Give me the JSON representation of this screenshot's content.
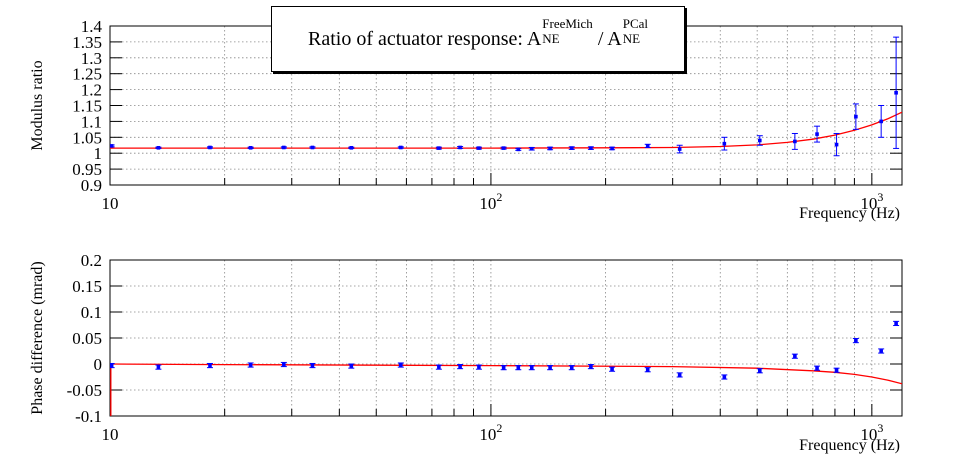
{
  "chart_data": [
    {
      "type": "scatter",
      "title": "Ratio of actuator response: A_NE^FreeMich / A_NE^PCal",
      "xlabel": "Frequency (Hz)",
      "ylabel": "Modulus ratio",
      "xscale": "log",
      "xlim": [
        10,
        1200
      ],
      "ylim": [
        0.9,
        1.4
      ],
      "xticks": [
        10,
        100,
        1000
      ],
      "xtick_labels": [
        "10",
        "10^2",
        "10^3"
      ],
      "yticks": [
        0.9,
        0.95,
        1.0,
        1.05,
        1.1,
        1.15,
        1.2,
        1.25,
        1.3,
        1.35,
        1.4
      ],
      "ytick_labels": [
        "0.9",
        "0.95",
        "1",
        "1.05",
        "1.1",
        "1.15",
        "1.2",
        "1.25",
        "1.3",
        "1.35",
        "1.4"
      ],
      "grid": true,
      "series": [
        {
          "x": [
            10.1,
            13.4,
            18.3,
            23.4,
            28.6,
            34.0,
            43.0,
            58.0,
            73.0,
            83.0,
            93.0,
            108.0,
            118.0,
            128.0,
            143.0,
            163.0,
            183.0,
            208.0,
            258.0,
            313.0,
            410.0,
            508.0,
            628.0,
            718.0,
            808.0,
            908.0,
            1058.0,
            1158.0
          ],
          "y": [
            1.023,
            1.017,
            1.018,
            1.017,
            1.018,
            1.018,
            1.017,
            1.018,
            1.016,
            1.018,
            1.016,
            1.016,
            1.012,
            1.014,
            1.015,
            1.016,
            1.016,
            1.015,
            1.023,
            1.013,
            1.03,
            1.04,
            1.037,
            1.06,
            1.027,
            1.115,
            1.1,
            1.19
          ],
          "yerr": [
            0.003,
            0.002,
            0.002,
            0.002,
            0.002,
            0.002,
            0.002,
            0.002,
            0.003,
            0.003,
            0.003,
            0.003,
            0.003,
            0.004,
            0.004,
            0.004,
            0.004,
            0.004,
            0.005,
            0.012,
            0.02,
            0.015,
            0.025,
            0.025,
            0.035,
            0.04,
            0.05,
            0.175
          ]
        },
        {
          "type": "line",
          "x": [
            10,
            100,
            200,
            300,
            400,
            500,
            600,
            700,
            800,
            900,
            1000,
            1100,
            1200
          ],
          "y": [
            1.016,
            1.016,
            1.017,
            1.018,
            1.021,
            1.026,
            1.034,
            1.044,
            1.057,
            1.072,
            1.089,
            1.108,
            1.129
          ]
        }
      ]
    },
    {
      "type": "scatter",
      "xlabel": "Frequency (Hz)",
      "ylabel": "Phase difference (mrad)",
      "xscale": "log",
      "xlim": [
        10,
        1200
      ],
      "ylim": [
        -0.1,
        0.2
      ],
      "xticks": [
        10,
        100,
        1000
      ],
      "xtick_labels": [
        "10",
        "10^2",
        "10^3"
      ],
      "yticks": [
        -0.1,
        -0.05,
        0,
        0.05,
        0.1,
        0.15,
        0.2
      ],
      "ytick_labels": [
        "-0.1",
        "-0.05",
        "0",
        "0.05",
        "0.1",
        "0.15",
        "0.2"
      ],
      "grid": true,
      "series": [
        {
          "x": [
            10.1,
            13.4,
            18.3,
            23.4,
            28.6,
            34.0,
            43.0,
            58.0,
            73.0,
            83.0,
            93.0,
            108.0,
            118.0,
            128.0,
            143.0,
            163.0,
            183.0,
            208.0,
            258.0,
            313.0,
            410.0,
            508.0,
            628.0,
            718.0,
            808.0,
            908.0,
            1058.0,
            1158.0
          ],
          "y": [
            -0.003,
            -0.006,
            -0.003,
            -0.002,
            -0.001,
            -0.003,
            -0.004,
            -0.002,
            -0.006,
            -0.005,
            -0.006,
            -0.007,
            -0.007,
            -0.007,
            -0.007,
            -0.007,
            -0.005,
            -0.01,
            -0.011,
            -0.021,
            -0.025,
            -0.013,
            0.015,
            -0.008,
            -0.012,
            0.045,
            0.025,
            0.078
          ]
        },
        {
          "type": "line",
          "x": [
            10,
            17,
            100,
            300,
            500,
            700,
            800,
            900,
            1000,
            1100,
            1200
          ],
          "y": [
            0.0,
            -0.001,
            -0.003,
            -0.005,
            -0.008,
            -0.013,
            -0.016,
            -0.02,
            -0.025,
            -0.031,
            -0.038
          ]
        }
      ]
    }
  ],
  "title_box": {
    "prefix": "Ratio of actuator response: A",
    "sup1": "FreeMich",
    "sub1": "NE",
    "mid": " / A",
    "sup2": "PCal",
    "sub2": "NE"
  },
  "colors": {
    "points": "#0000ff",
    "fit": "#ff0000",
    "grid": "#888888"
  }
}
